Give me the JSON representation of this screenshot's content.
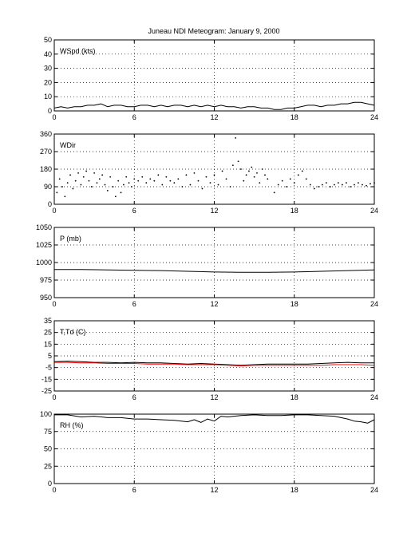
{
  "title": "Juneau NDI Meteogram:    January  9, 2000",
  "chart_data": [
    {
      "type": "line",
      "label": "WSpd (kts)",
      "xlim": [
        0,
        24
      ],
      "ylim": [
        0,
        50
      ],
      "xticks": [
        0,
        6,
        12,
        18,
        24
      ],
      "yticks": [
        0,
        10,
        20,
        30,
        40,
        50
      ],
      "grid": true,
      "series": [
        {
          "color": "#000000",
          "style": "line",
          "x": [
            0,
            0.5,
            1,
            1.5,
            2,
            2.5,
            3,
            3.5,
            4,
            4.5,
            5,
            5.5,
            6,
            6.5,
            7,
            7.5,
            8,
            8.5,
            9,
            9.5,
            10,
            10.5,
            11,
            11.5,
            12,
            12.5,
            13,
            13.5,
            14,
            14.5,
            15,
            15.5,
            16,
            16.5,
            17,
            17.5,
            18,
            18.5,
            19,
            19.5,
            20,
            20.5,
            21,
            21.5,
            22,
            22.5,
            23,
            23.5,
            24
          ],
          "y": [
            2,
            3,
            2,
            3,
            3,
            4,
            4,
            5,
            3,
            4,
            4,
            3,
            3,
            4,
            4,
            3,
            4,
            3,
            4,
            4,
            3,
            4,
            3,
            4,
            3,
            4,
            3,
            3,
            2,
            3,
            3,
            2,
            2,
            1,
            1,
            2,
            2,
            3,
            4,
            4,
            3,
            4,
            4,
            5,
            5,
            6,
            6,
            5,
            4
          ]
        }
      ]
    },
    {
      "type": "scatter",
      "label": "WDir",
      "xlim": [
        0,
        24
      ],
      "ylim": [
        0,
        360
      ],
      "xticks": [
        0,
        6,
        12,
        18,
        24
      ],
      "yticks": [
        0,
        90,
        180,
        270,
        360
      ],
      "grid": true,
      "series": [
        {
          "color": "#000000",
          "style": "dots",
          "x": [
            0.2,
            0.4,
            0.6,
            0.8,
            1,
            1.2,
            1.4,
            1.6,
            1.8,
            2,
            2.2,
            2.4,
            2.6,
            2.8,
            3,
            3.2,
            3.4,
            3.6,
            3.8,
            4,
            4.2,
            4.4,
            4.6,
            4.8,
            5,
            5.2,
            5.4,
            5.6,
            5.8,
            6,
            6.3,
            6.6,
            6.9,
            7.2,
            7.5,
            7.8,
            8.1,
            8.4,
            8.7,
            9,
            9.3,
            9.6,
            9.9,
            10.2,
            10.5,
            10.8,
            11.1,
            11.4,
            11.7,
            12,
            12.3,
            12.6,
            12.9,
            13.2,
            13.4,
            13.6,
            13.8,
            14,
            14.2,
            14.4,
            14.6,
            14.8,
            15,
            15.2,
            15.4,
            15.6,
            15.8,
            16,
            16.5,
            16.8,
            17.1,
            17.4,
            17.7,
            18,
            18.3,
            18.6,
            18.9,
            19.2,
            19.5,
            19.8,
            20.1,
            20.4,
            20.7,
            21,
            21.3,
            21.6,
            21.9,
            22.2,
            22.5,
            22.8,
            23.1,
            23.4,
            23.7,
            24
          ],
          "y": [
            60,
            130,
            90,
            40,
            110,
            150,
            80,
            120,
            160,
            100,
            140,
            170,
            120,
            90,
            160,
            110,
            130,
            150,
            100,
            70,
            140,
            90,
            40,
            120,
            60,
            100,
            140,
            110,
            90,
            130,
            120,
            140,
            110,
            130,
            120,
            150,
            100,
            140,
            120,
            110,
            130,
            90,
            150,
            100,
            160,
            120,
            80,
            140,
            110,
            150,
            100,
            170,
            130,
            90,
            200,
            340,
            220,
            180,
            120,
            150,
            170,
            190,
            140,
            160,
            110,
            180,
            150,
            130,
            60,
            100,
            120,
            90,
            130,
            110,
            150,
            170,
            130,
            100,
            80,
            90,
            100,
            110,
            90,
            100,
            110,
            100,
            110,
            90,
            100,
            110,
            100,
            95,
            105,
            110
          ]
        }
      ]
    },
    {
      "type": "line",
      "label": "P (mb)",
      "xlim": [
        0,
        24
      ],
      "ylim": [
        950,
        1050
      ],
      "xticks": [
        0,
        6,
        12,
        18,
        24
      ],
      "yticks": [
        950,
        975,
        1000,
        1025,
        1050
      ],
      "grid": true,
      "series": [
        {
          "color": "#000000",
          "style": "line",
          "x": [
            0,
            2,
            4,
            6,
            8,
            10,
            12,
            14,
            16,
            18,
            20,
            22,
            24
          ],
          "y": [
            990,
            990,
            989.5,
            989,
            988.5,
            987.5,
            986.5,
            986,
            986,
            986.5,
            987.5,
            988.5,
            989.5
          ]
        }
      ]
    },
    {
      "type": "line",
      "label": "T,Td (C)",
      "xlim": [
        0,
        24
      ],
      "ylim": [
        -25,
        35
      ],
      "xticks": [
        0,
        6,
        12,
        18,
        24
      ],
      "yticks": [
        -25,
        -15,
        -5,
        5,
        15,
        25,
        35
      ],
      "grid": true,
      "series": [
        {
          "color": "#000000",
          "style": "line",
          "x": [
            0,
            1,
            2,
            3,
            4,
            5,
            6,
            7,
            8,
            9,
            10,
            11,
            12,
            13,
            14,
            15,
            16,
            17,
            18,
            19,
            20,
            21,
            22,
            23,
            24
          ],
          "y": [
            0,
            0.5,
            0,
            -0.5,
            -0.5,
            -1,
            -0.5,
            -1,
            -1,
            -1.5,
            -2,
            -1.5,
            -2,
            -2.5,
            -3,
            -2.5,
            -2,
            -2,
            -2,
            -2,
            -1.5,
            -1,
            -0.5,
            -1,
            -1
          ]
        },
        {
          "color": "#ff0000",
          "style": "line",
          "x": [
            0,
            1,
            2,
            3,
            4,
            5,
            6,
            7,
            8,
            9,
            10,
            11,
            12,
            13,
            14,
            15,
            16,
            17,
            18,
            19,
            20,
            21,
            22,
            23,
            24
          ],
          "y": [
            -0.5,
            -0.5,
            -1,
            -1,
            -1.5,
            -1.5,
            -1.5,
            -2,
            -2,
            -2,
            -2.5,
            -2.5,
            -2.5,
            -3,
            -3.5,
            -3,
            -3,
            -3,
            -3,
            -3,
            -3,
            -2.5,
            -2.5,
            -2.5,
            -3
          ]
        }
      ]
    },
    {
      "type": "line",
      "label": "RH (%)",
      "xlim": [
        0,
        24
      ],
      "ylim": [
        0,
        100
      ],
      "xticks": [
        0,
        6,
        12,
        18,
        24
      ],
      "yticks": [
        0,
        25,
        50,
        75,
        100
      ],
      "grid": true,
      "series": [
        {
          "color": "#000000",
          "style": "line",
          "x": [
            0,
            1,
            2,
            3,
            4,
            5,
            6,
            7,
            8,
            9,
            10,
            10.5,
            11,
            11.5,
            12,
            12.5,
            13,
            14,
            15,
            16,
            17,
            18,
            19,
            20,
            21,
            22,
            22.5,
            23,
            23.5,
            24
          ],
          "y": [
            99,
            99,
            96,
            97,
            95,
            95,
            93,
            93,
            92,
            91,
            89,
            92,
            88,
            93,
            90,
            97,
            96,
            98,
            99,
            98,
            98,
            99,
            99,
            98,
            97,
            93,
            90,
            89,
            87,
            92
          ]
        }
      ]
    }
  ]
}
